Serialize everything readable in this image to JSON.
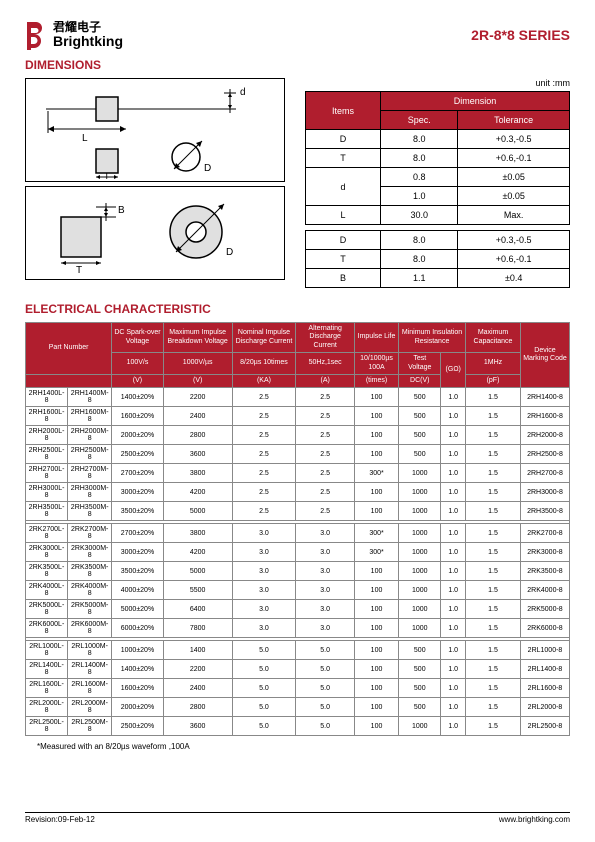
{
  "header": {
    "logo_cn": "君耀电子",
    "logo_en": "Brightking",
    "series": "2R-8*8 SERIES",
    "logo_color": "#b01e2e"
  },
  "sections": {
    "dimensions": "DIMENSIONS",
    "electrical": "ELECTRICAL CHARACTERISTIC"
  },
  "dim_unit": "unit :mm",
  "dim_table": {
    "head_items": "Items",
    "head_dim": "Dimension",
    "head_spec": "Spec.",
    "head_tol": "Tolerance",
    "rows1": [
      {
        "k": "D",
        "s": "8.0",
        "t": "+0.3,-0.5"
      },
      {
        "k": "T",
        "s": "8.0",
        "t": "+0.6,-0.1"
      },
      {
        "k": "d",
        "s": "0.8",
        "t": "±0.05",
        "rowspan": 2
      },
      {
        "k": "",
        "s": "1.0",
        "t": "±0.05"
      },
      {
        "k": "L",
        "s": "30.0",
        "t": "Max."
      }
    ],
    "rows2": [
      {
        "k": "D",
        "s": "8.0",
        "t": "+0.3,-0.5"
      },
      {
        "k": "T",
        "s": "8.0",
        "t": "+0.6,-0.1"
      },
      {
        "k": "B",
        "s": "1.1",
        "t": "±0.4"
      }
    ]
  },
  "elec_head": {
    "pn": "Part Number",
    "dcso": "DC Spark-over Voltage",
    "mibv": "Maximum Impulse Breakdown Voltage",
    "nidc": "Nominal Impulse Discharge Current",
    "adc": "Alternating Discharge Current",
    "il": "Impulse Life",
    "mir": "Minimum Insulation Resistance",
    "mc": "Maximum Capacitance",
    "dmc": "Device Marking Code",
    "u_100vs": "100V/s",
    "u_1000vus": "1000V/µs",
    "u_820": "8/20µs 10times",
    "u_50hz": "50Hz,1sec",
    "u_101000": "10/1000µs 100A",
    "u_tv": "Test Voltage",
    "u_go": "(GΩ)",
    "u_1mhz": "1MHz",
    "u_v": "(V)",
    "u_v2": "(V)",
    "u_ka": "(KA)",
    "u_a": "(A)",
    "u_times": "(times)",
    "u_dcv": "DC(V)",
    "u_pf": "(pF)"
  },
  "elec_rows_g1": [
    [
      "2RH1400L-8",
      "2RH1400M-8",
      "1400±20%",
      "2200",
      "2.5",
      "2.5",
      "100",
      "500",
      "1.0",
      "1.5",
      "2RH1400-8"
    ],
    [
      "2RH1600L-8",
      "2RH1600M-8",
      "1600±20%",
      "2400",
      "2.5",
      "2.5",
      "100",
      "500",
      "1.0",
      "1.5",
      "2RH1600-8"
    ],
    [
      "2RH2000L-8",
      "2RH2000M-8",
      "2000±20%",
      "2800",
      "2.5",
      "2.5",
      "100",
      "500",
      "1.0",
      "1.5",
      "2RH2000-8"
    ],
    [
      "2RH2500L-8",
      "2RH2500M-8",
      "2500±20%",
      "3600",
      "2.5",
      "2.5",
      "100",
      "500",
      "1.0",
      "1.5",
      "2RH2500-8"
    ],
    [
      "2RH2700L-8",
      "2RH2700M-8",
      "2700±20%",
      "3800",
      "2.5",
      "2.5",
      "300*",
      "1000",
      "1.0",
      "1.5",
      "2RH2700-8"
    ],
    [
      "2RH3000L-8",
      "2RH3000M-8",
      "3000±20%",
      "4200",
      "2.5",
      "2.5",
      "100",
      "1000",
      "1.0",
      "1.5",
      "2RH3000-8"
    ],
    [
      "2RH3500L-8",
      "2RH3500M-8",
      "3500±20%",
      "5000",
      "2.5",
      "2.5",
      "100",
      "1000",
      "1.0",
      "1.5",
      "2RH3500-8"
    ]
  ],
  "elec_rows_g2": [
    [
      "2RK2700L-8",
      "2RK2700M-8",
      "2700±20%",
      "3800",
      "3.0",
      "3.0",
      "300*",
      "1000",
      "1.0",
      "1.5",
      "2RK2700-8"
    ],
    [
      "2RK3000L-8",
      "2RK3000M-8",
      "3000±20%",
      "4200",
      "3.0",
      "3.0",
      "300*",
      "1000",
      "1.0",
      "1.5",
      "2RK3000-8"
    ],
    [
      "2RK3500L-8",
      "2RK3500M-8",
      "3500±20%",
      "5000",
      "3.0",
      "3.0",
      "100",
      "1000",
      "1.0",
      "1.5",
      "2RK3500-8"
    ],
    [
      "2RK4000L-8",
      "2RK4000M-8",
      "4000±20%",
      "5500",
      "3.0",
      "3.0",
      "100",
      "1000",
      "1.0",
      "1.5",
      "2RK4000-8"
    ],
    [
      "2RK5000L-8",
      "2RK5000M-8",
      "5000±20%",
      "6400",
      "3.0",
      "3.0",
      "100",
      "1000",
      "1.0",
      "1.5",
      "2RK5000-8"
    ],
    [
      "2RK6000L-8",
      "2RK6000M-8",
      "6000±20%",
      "7800",
      "3.0",
      "3.0",
      "100",
      "1000",
      "1.0",
      "1.5",
      "2RK6000-8"
    ]
  ],
  "elec_rows_g3": [
    [
      "2RL1000L-8",
      "2RL1000M-8",
      "1000±20%",
      "1400",
      "5.0",
      "5.0",
      "100",
      "500",
      "1.0",
      "1.5",
      "2RL1000-8"
    ],
    [
      "2RL1400L-8",
      "2RL1400M-8",
      "1400±20%",
      "2200",
      "5.0",
      "5.0",
      "100",
      "500",
      "1.0",
      "1.5",
      "2RL1400-8"
    ],
    [
      "2RL1600L-8",
      "2RL1600M-8",
      "1600±20%",
      "2400",
      "5.0",
      "5.0",
      "100",
      "500",
      "1.0",
      "1.5",
      "2RL1600-8"
    ],
    [
      "2RL2000L-8",
      "2RL2000M-8",
      "2000±20%",
      "2800",
      "5.0",
      "5.0",
      "100",
      "500",
      "1.0",
      "1.5",
      "2RL2000-8"
    ],
    [
      "2RL2500L-8",
      "2RL2500M-8",
      "2500±20%",
      "3600",
      "5.0",
      "5.0",
      "100",
      "1000",
      "1.0",
      "1.5",
      "2RL2500-8"
    ]
  ],
  "footnote": "*Measured with an 8/20µs waveform ,100A",
  "footer": {
    "rev": "Revision:09-Feb-12",
    "url": "www.brightking.com"
  }
}
